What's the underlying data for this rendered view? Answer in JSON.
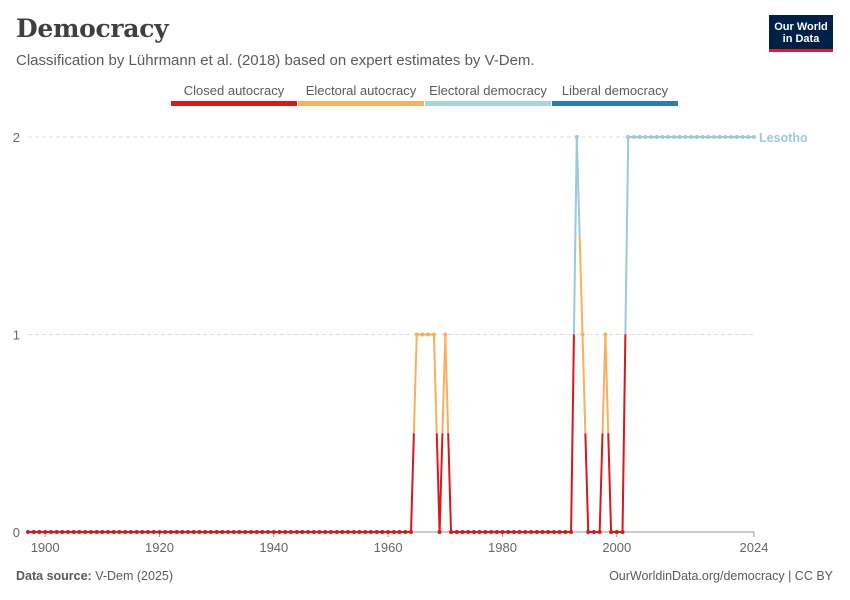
{
  "header": {
    "title": "Democracy",
    "subtitle": "Classification by Lührmann et al. (2018) based on expert estimates by V-Dem.",
    "logo_line1": "Our World",
    "logo_line2": "in Data"
  },
  "footer": {
    "source_label": "Data source:",
    "source_value": "V-Dem (2025)",
    "credit": "OurWorldinData.org/democracy | CC BY"
  },
  "chart_data": {
    "type": "line",
    "title": "Democracy",
    "subtitle": "Classification by Lührmann et al. (2018) based on expert estimates by V-Dem.",
    "xlabel": "",
    "ylabel": "",
    "xlim": [
      1897,
      2024
    ],
    "ylim": [
      0,
      2
    ],
    "x_ticks": [
      "1900",
      "1920",
      "1940",
      "1960",
      "1980",
      "2000",
      "2024"
    ],
    "y_ticks": [
      "0",
      "1",
      "2"
    ],
    "grid": true,
    "legend_position": "top",
    "categories_legend": [
      {
        "label": "Closed autocracy",
        "color": "#d7191c"
      },
      {
        "label": "Electoral autocracy",
        "color": "#f5b060"
      },
      {
        "label": "Electoral democracy",
        "color": "#a5d5dd"
      },
      {
        "label": "Liberal democracy",
        "color": "#2c7bb6"
      }
    ],
    "series": [
      {
        "name": "Lesotho",
        "color": "#9ccad8",
        "points": [
          [
            1897,
            0
          ],
          [
            1898,
            0
          ],
          [
            1899,
            0
          ],
          [
            1900,
            0
          ],
          [
            1901,
            0
          ],
          [
            1902,
            0
          ],
          [
            1903,
            0
          ],
          [
            1904,
            0
          ],
          [
            1905,
            0
          ],
          [
            1906,
            0
          ],
          [
            1907,
            0
          ],
          [
            1908,
            0
          ],
          [
            1909,
            0
          ],
          [
            1910,
            0
          ],
          [
            1911,
            0
          ],
          [
            1912,
            0
          ],
          [
            1913,
            0
          ],
          [
            1914,
            0
          ],
          [
            1915,
            0
          ],
          [
            1916,
            0
          ],
          [
            1917,
            0
          ],
          [
            1918,
            0
          ],
          [
            1919,
            0
          ],
          [
            1920,
            0
          ],
          [
            1921,
            0
          ],
          [
            1922,
            0
          ],
          [
            1923,
            0
          ],
          [
            1924,
            0
          ],
          [
            1925,
            0
          ],
          [
            1926,
            0
          ],
          [
            1927,
            0
          ],
          [
            1928,
            0
          ],
          [
            1929,
            0
          ],
          [
            1930,
            0
          ],
          [
            1931,
            0
          ],
          [
            1932,
            0
          ],
          [
            1933,
            0
          ],
          [
            1934,
            0
          ],
          [
            1935,
            0
          ],
          [
            1936,
            0
          ],
          [
            1937,
            0
          ],
          [
            1938,
            0
          ],
          [
            1939,
            0
          ],
          [
            1940,
            0
          ],
          [
            1941,
            0
          ],
          [
            1942,
            0
          ],
          [
            1943,
            0
          ],
          [
            1944,
            0
          ],
          [
            1945,
            0
          ],
          [
            1946,
            0
          ],
          [
            1947,
            0
          ],
          [
            1948,
            0
          ],
          [
            1949,
            0
          ],
          [
            1950,
            0
          ],
          [
            1951,
            0
          ],
          [
            1952,
            0
          ],
          [
            1953,
            0
          ],
          [
            1954,
            0
          ],
          [
            1955,
            0
          ],
          [
            1956,
            0
          ],
          [
            1957,
            0
          ],
          [
            1958,
            0
          ],
          [
            1959,
            0
          ],
          [
            1960,
            0
          ],
          [
            1961,
            0
          ],
          [
            1962,
            0
          ],
          [
            1963,
            0
          ],
          [
            1964,
            0
          ],
          [
            1965,
            1
          ],
          [
            1966,
            1
          ],
          [
            1967,
            1
          ],
          [
            1968,
            1
          ],
          [
            1969,
            0
          ],
          [
            1970,
            1
          ],
          [
            1971,
            0
          ],
          [
            1972,
            0
          ],
          [
            1973,
            0
          ],
          [
            1974,
            0
          ],
          [
            1975,
            0
          ],
          [
            1976,
            0
          ],
          [
            1977,
            0
          ],
          [
            1978,
            0
          ],
          [
            1979,
            0
          ],
          [
            1980,
            0
          ],
          [
            1981,
            0
          ],
          [
            1982,
            0
          ],
          [
            1983,
            0
          ],
          [
            1984,
            0
          ],
          [
            1985,
            0
          ],
          [
            1986,
            0
          ],
          [
            1987,
            0
          ],
          [
            1988,
            0
          ],
          [
            1989,
            0
          ],
          [
            1990,
            0
          ],
          [
            1991,
            0
          ],
          [
            1992,
            0
          ],
          [
            1993,
            2
          ],
          [
            1994,
            1
          ],
          [
            1995,
            0
          ],
          [
            1996,
            0
          ],
          [
            1997,
            0
          ],
          [
            1998,
            1
          ],
          [
            1999,
            0
          ],
          [
            2000,
            0
          ],
          [
            2001,
            0
          ],
          [
            2002,
            2
          ],
          [
            2003,
            2
          ],
          [
            2004,
            2
          ],
          [
            2005,
            2
          ],
          [
            2006,
            2
          ],
          [
            2007,
            2
          ],
          [
            2008,
            2
          ],
          [
            2009,
            2
          ],
          [
            2010,
            2
          ],
          [
            2011,
            2
          ],
          [
            2012,
            2
          ],
          [
            2013,
            2
          ],
          [
            2014,
            2
          ],
          [
            2015,
            2
          ],
          [
            2016,
            2
          ],
          [
            2017,
            2
          ],
          [
            2018,
            2
          ],
          [
            2019,
            2
          ],
          [
            2020,
            2
          ],
          [
            2021,
            2
          ],
          [
            2022,
            2
          ],
          [
            2023,
            2
          ],
          [
            2024,
            2
          ]
        ]
      }
    ]
  }
}
